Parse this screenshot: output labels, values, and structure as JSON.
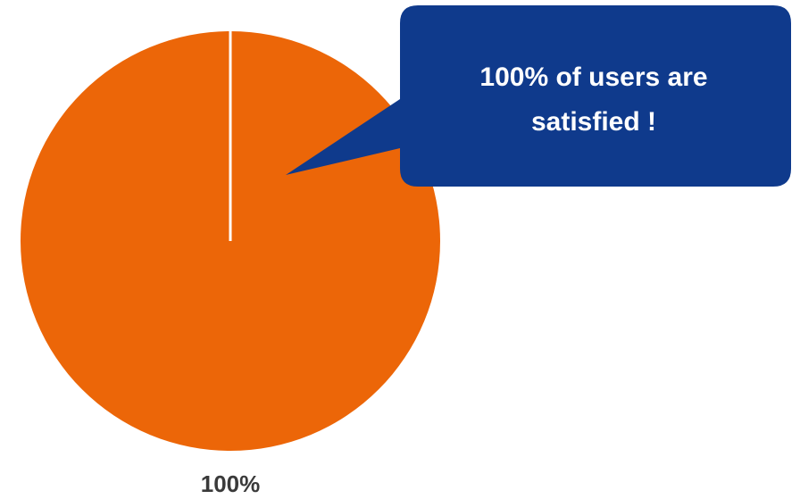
{
  "chart_data": {
    "type": "pie",
    "categories": [
      ""
    ],
    "values": [
      100
    ],
    "colors": [
      "#EC6608"
    ],
    "slice_border_color": "#ffffff",
    "data_labels": [
      "100%"
    ],
    "annotation": {
      "lines": [
        "100%  of users are",
        "satisfied !"
      ],
      "fill": "#0F3A8C",
      "text_color": "#ffffff"
    }
  }
}
